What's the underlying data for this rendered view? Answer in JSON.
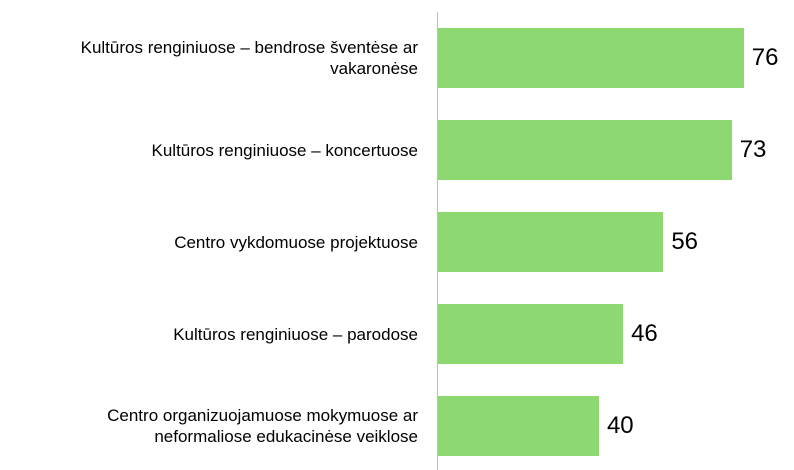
{
  "chart_data": {
    "type": "bar",
    "orientation": "horizontal",
    "categories": [
      "Kultūros renginiuose – bendrose šventėse ar vakaronėse",
      "Kultūros renginiuose – koncertuose",
      "Centro vykdomuose projektuose",
      "Kultūros renginiuose – parodose",
      "Centro organizuojamuose mokymuose ar neformaliose edukacinėse veiklose"
    ],
    "values": [
      76,
      73,
      56,
      46,
      40
    ],
    "color": "#8ed872",
    "xlim": [
      0,
      85
    ]
  }
}
